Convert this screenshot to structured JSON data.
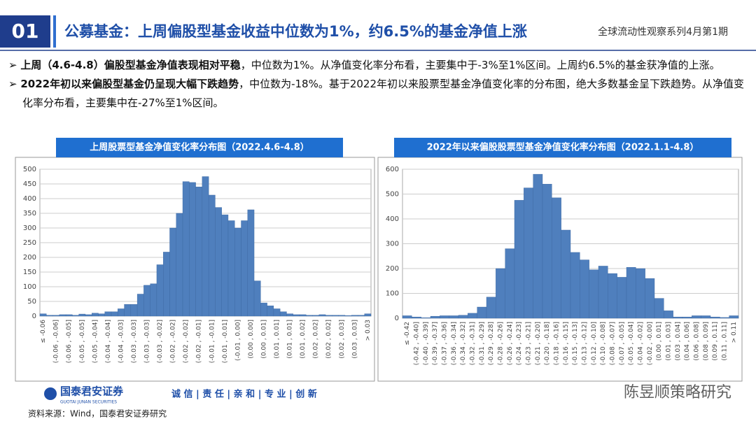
{
  "header": {
    "number": "01",
    "title": "公募基金：上周偏股型基金收益中位数为1%，约6.5%的基金净值上涨",
    "series_note": "全球流动性观察系列4月第1期"
  },
  "bullets": [
    {
      "bold": "上周（4.6-4.8）偏股型基金净值表现相对平稳",
      "text": "，中位数为1%。从净值变化率分布看，主要集中于-3%至1%区间。上周约6.5%的基金获净值的上涨。"
    },
    {
      "bold": "2022年初以来偏股型基金仍呈现大幅下跌趋势",
      "text": "，中位数为-18%。基于2022年初以来股票型基金净值变化率的分布图，绝大多数基金呈下跌趋势。从净值变化率分布看，主要集中在-27%至1%区间。"
    }
  ],
  "chart_data": [
    {
      "type": "bar",
      "title": "上周股票型基金净值变化率分布图（2022.4.6-4.8）",
      "color": "#4f7fbd",
      "grid": true,
      "ylim": [
        0,
        500
      ],
      "yticks": [
        0,
        50,
        100,
        150,
        200,
        250,
        300,
        350,
        400,
        450,
        500
      ],
      "categories": [
        "≤ -0.06",
        null,
        "(-0.06 , -0.06]",
        null,
        "(-0.06 , -0.05]",
        null,
        "(-0.05 , -0.05]",
        null,
        "(-0.05 , -0.04]",
        null,
        "(-0.04 , -0.04]",
        null,
        "(-0.04 , -0.03]",
        null,
        "(-0.03 , -0.03]",
        null,
        "(-0.03 , -0.03]",
        null,
        "(-0.03 , -0.02]",
        null,
        "(-0.02 , -0.02]",
        null,
        "(-0.02 , -0.02]",
        null,
        "(-0.02 , -0.01]",
        null,
        "(-0.01 , -0.01]",
        null,
        "(-0.01 , -0.01]",
        null,
        "(-0.01 , 0.00]",
        null,
        "(0.00 , 0.00]",
        null,
        "(0.00 , 0.01]",
        null,
        "(0.01 , 0.01]",
        null,
        "(0.01 , 0.01]",
        null,
        "(0.01 , 0.02]",
        null,
        "(0.02 , 0.02]",
        null,
        "(0.02 , 0.02]",
        null,
        "(0.02 , 0.03]",
        null,
        "(0.03 , 0.03]",
        null,
        "> 0.03"
      ],
      "values": [
        8,
        3,
        3,
        5,
        5,
        3,
        7,
        5,
        10,
        8,
        15,
        15,
        25,
        40,
        40,
        75,
        105,
        110,
        175,
        218,
        300,
        350,
        458,
        455,
        440,
        475,
        412,
        370,
        345,
        325,
        300,
        325,
        362,
        120,
        45,
        35,
        25,
        15,
        8,
        5,
        5,
        3,
        3,
        5,
        3,
        3,
        3,
        2,
        3,
        3,
        8
      ]
    },
    {
      "type": "bar",
      "title": "2022年以来偏股股票型基金净值变化率分布图（2022.1.1-4.8）",
      "color": "#4f7fbd",
      "grid": true,
      "ylim": [
        0,
        600
      ],
      "yticks": [
        0,
        100,
        200,
        300,
        400,
        500,
        600
      ],
      "categories": [
        "≤ -0.42",
        "(-0.42 , -0.40]",
        "(-0.40 , -0.39]",
        "(-0.39 , -0.37]",
        "(-0.37 , -0.36]",
        "(-0.36 , -0.34]",
        "(-0.34 , -0.32]",
        "(-0.32 , -0.31]",
        "(-0.31 , -0.29]",
        "(-0.29 , -0.28]",
        "(-0.28 , -0.26]",
        "(-0.26 , -0.24]",
        "(-0.24 , -0.23]",
        "(-0.23 , -0.21]",
        "(-0.21 , -0.20]",
        "(-0.20 , -0.18]",
        "(-0.18 , -0.16]",
        "(-0.16 , -0.15]",
        "(-0.15 , -0.13]",
        "(-0.13 , -0.12]",
        "(-0.12 , -0.10]",
        "(-0.10 , -0.08]",
        "(-0.08 , -0.07]",
        "(-0.07 , -0.05]",
        "(-0.05 , -0.04]",
        "(-0.04 , -0.02]",
        "(-0.02 , -0.00]",
        "(0.00 , 0.01]",
        "(0.01 , 0.03]",
        "(0.03 , 0.04]",
        "(0.04 , 0.06]",
        "(0.06 , 0.08]",
        "(0.08 , 0.09]",
        "(0.09 , 0.11]",
        "(0.11 , 0.11]",
        "> 0.11"
      ],
      "values": [
        10,
        5,
        2,
        8,
        10,
        10,
        12,
        20,
        45,
        85,
        200,
        280,
        475,
        525,
        580,
        540,
        485,
        355,
        265,
        235,
        195,
        210,
        180,
        165,
        205,
        200,
        160,
        80,
        30,
        5,
        5,
        10,
        10,
        5,
        3,
        10
      ]
    }
  ],
  "footer": {
    "logo": "国泰君安证券",
    "logo_en": "GUOTAI JUNAN SECURITIES",
    "slogan": "诚 信 | 责 任 | 亲 和 | 专 业 | 创 新",
    "source": "资料来源：Wind，国泰君安证券研究",
    "watermark": "陈昱顺策略研究"
  }
}
